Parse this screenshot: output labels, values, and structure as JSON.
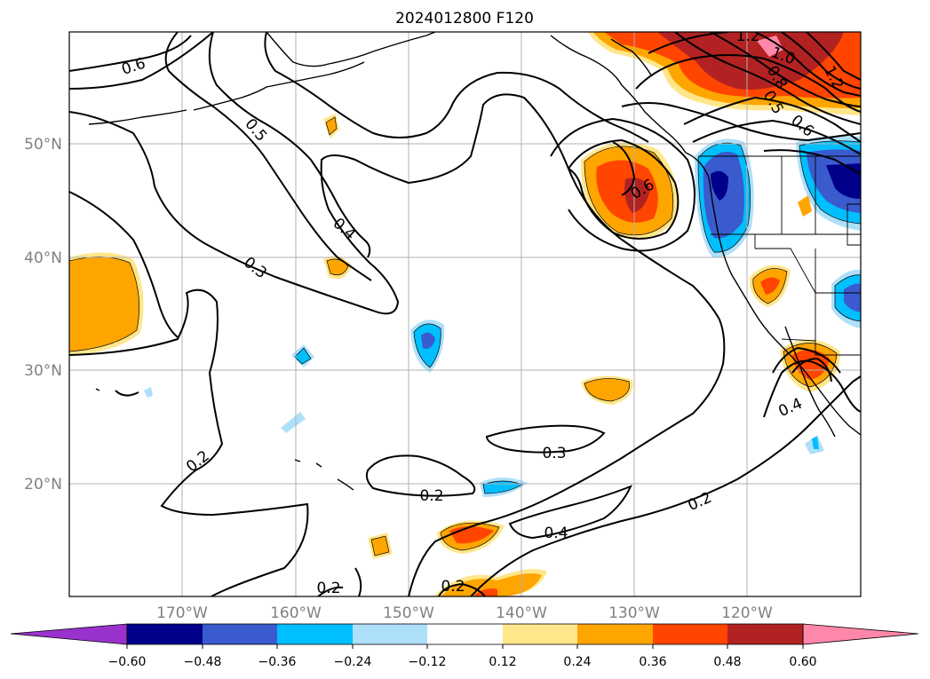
{
  "title": "2024012800 F120",
  "map": {
    "lat_labels": [
      "50°N",
      "40°N",
      "30°N",
      "20°N"
    ],
    "lon_labels": [
      "170°W",
      "160°W",
      "150°W",
      "140°W",
      "130°W",
      "120°W"
    ]
  },
  "contour_labels": [
    "0.6",
    "0.5",
    "0.4",
    "0.3",
    "0.2",
    "0.2",
    "0.2",
    "0.3",
    "0.2",
    "0.4",
    "0.2",
    "0.6",
    "1.2",
    "1.0",
    "0.8",
    "0.5",
    "0.6",
    "1.2",
    "0.4"
  ],
  "colorbar": {
    "ticks": [
      "−0.60",
      "−0.48",
      "−0.36",
      "−0.24",
      "−0.12",
      "0.12",
      "0.24",
      "0.36",
      "0.48",
      "0.60"
    ],
    "colors": [
      "#9932cc",
      "#00008b",
      "#3a5bcd",
      "#00bfff",
      "#aee0fa",
      "#ffffff",
      "#ffe68a",
      "#ffa500",
      "#ff4500",
      "#b22222",
      "#ff88aa"
    ]
  }
}
